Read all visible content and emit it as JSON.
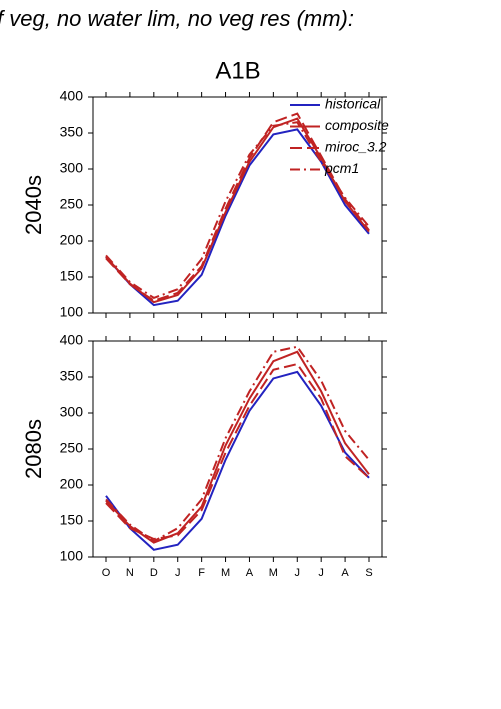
{
  "header": {
    "title": "f veg, no water lim, no veg res (mm):",
    "scenario": "A1B"
  },
  "chart_data": [
    {
      "type": "line",
      "ylabel": "2040s",
      "categories": [
        null,
        null,
        null,
        null,
        null,
        null,
        null,
        null,
        null,
        null,
        null,
        null
      ],
      "ylim": [
        100,
        400
      ],
      "yticks": [
        100,
        150,
        200,
        250,
        300,
        350,
        400
      ],
      "legend": "upper right",
      "series": [
        {
          "name": "historical",
          "color": "#2323c0",
          "line_style": "solid",
          "values": [
            178,
            140,
            111,
            117,
            153,
            235,
            305,
            348,
            355,
            310,
            250,
            210
          ]
        },
        {
          "name": "composite",
          "color": "#c02323",
          "line_style": "solid",
          "values": [
            178,
            141,
            115,
            125,
            162,
            240,
            310,
            358,
            370,
            315,
            255,
            213
          ]
        },
        {
          "name": "miroc_3.2",
          "color": "#c02323",
          "line_style": "dashed",
          "values": [
            176,
            140,
            117,
            128,
            165,
            245,
            315,
            365,
            377,
            318,
            258,
            215
          ]
        },
        {
          "name": "pcm1",
          "color": "#c02323",
          "line_style": "dashdot",
          "values": [
            180,
            143,
            121,
            133,
            175,
            255,
            320,
            360,
            365,
            310,
            260,
            220
          ]
        }
      ]
    },
    {
      "type": "line",
      "ylabel": "2080s",
      "categories": [
        "O",
        "N",
        "D",
        "J",
        "F",
        "M",
        "A",
        "M",
        "J",
        "J",
        "A",
        "S"
      ],
      "ylim": [
        100,
        400
      ],
      "yticks": [
        100,
        150,
        200,
        250,
        300,
        350,
        400
      ],
      "series": [
        {
          "color": "#2323c0",
          "line_style": "solid",
          "values": [
            185,
            140,
            110,
            117,
            153,
            235,
            303,
            348,
            357,
            310,
            245,
            210
          ]
        },
        {
          "color": "#c02323",
          "line_style": "solid",
          "values": [
            178,
            143,
            120,
            133,
            170,
            255,
            320,
            372,
            385,
            330,
            258,
            215
          ]
        },
        {
          "color": "#c02323",
          "line_style": "dashed",
          "values": [
            175,
            140,
            125,
            130,
            165,
            245,
            310,
            360,
            368,
            320,
            240,
            210
          ]
        },
        {
          "color": "#c02323",
          "line_style": "dashdot",
          "values": [
            180,
            145,
            122,
            140,
            180,
            265,
            330,
            385,
            392,
            345,
            275,
            235
          ]
        }
      ]
    }
  ]
}
